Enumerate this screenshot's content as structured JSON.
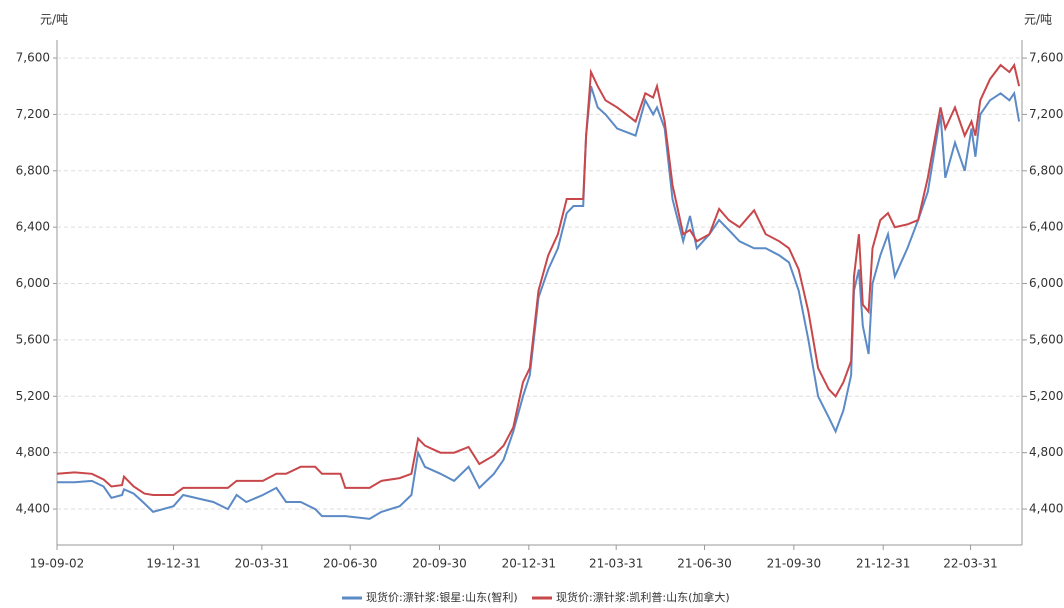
{
  "chart_data": {
    "type": "line",
    "y_label": "元/吨",
    "y2_label": "元/吨",
    "x": [
      "19-09-02",
      "19-09-20",
      "19-10-08",
      "19-10-20",
      "19-10-28",
      "19-11-08",
      "19-11-10",
      "19-11-20",
      "19-12-01",
      "19-12-10",
      "19-12-31",
      "20-01-10",
      "20-02-10",
      "20-02-25",
      "20-03-05",
      "20-03-15",
      "20-04-01",
      "20-04-15",
      "20-04-25",
      "20-05-10",
      "20-05-25",
      "20-06-01",
      "20-06-20",
      "20-06-25",
      "20-07-20",
      "20-08-01",
      "20-08-20",
      "20-09-01",
      "20-09-08",
      "20-09-15",
      "20-10-01",
      "20-10-15",
      "20-10-30",
      "20-11-10",
      "20-11-25",
      "20-12-05",
      "20-12-15",
      "20-12-25",
      "21-01-01",
      "21-01-10",
      "21-01-20",
      "21-01-30",
      "21-02-08",
      "21-02-15",
      "21-02-25",
      "21-02-28",
      "21-03-05",
      "21-03-12",
      "21-03-20",
      "21-04-01",
      "21-04-20",
      "21-04-30",
      "21-05-08",
      "21-05-12",
      "21-05-20",
      "21-05-28",
      "21-06-08",
      "21-06-15",
      "21-06-22",
      "21-07-05",
      "21-07-15",
      "21-07-25",
      "21-08-05",
      "21-08-20",
      "21-09-01",
      "21-09-15",
      "21-09-25",
      "21-10-05",
      "21-10-15",
      "21-10-25",
      "21-11-05",
      "21-11-12",
      "21-11-20",
      "21-11-28",
      "21-12-01",
      "21-12-06",
      "21-12-10",
      "21-12-16",
      "21-12-20",
      "21-12-28",
      "22-01-05",
      "22-01-12",
      "22-01-25",
      "22-02-05",
      "22-02-15",
      "22-02-28",
      "22-03-05",
      "22-03-15",
      "22-03-25",
      "22-04-01",
      "22-04-05",
      "22-04-10",
      "22-04-20",
      "22-05-01",
      "22-05-10",
      "22-05-15",
      "22-05-20"
    ],
    "series": [
      {
        "name": "现货价:漂针浆:银星:山东(智利)",
        "color": "#5b8ac6",
        "values": [
          4590,
          4590,
          4600,
          4560,
          4480,
          4500,
          4540,
          4510,
          4440,
          4380,
          4420,
          4500,
          4450,
          4400,
          4500,
          4450,
          4500,
          4550,
          4450,
          4450,
          4400,
          4350,
          4350,
          4350,
          4330,
          4380,
          4420,
          4500,
          4800,
          4700,
          4650,
          4600,
          4700,
          4550,
          4650,
          4750,
          4950,
          5200,
          5350,
          5900,
          6100,
          6250,
          6500,
          6550,
          6550,
          7050,
          7400,
          7250,
          7200,
          7100,
          7050,
          7300,
          7200,
          7250,
          7100,
          6600,
          6300,
          6480,
          6250,
          6350,
          6450,
          6380,
          6300,
          6250,
          6250,
          6200,
          6150,
          5950,
          5600,
          5200,
          5050,
          4950,
          5100,
          5350,
          5950,
          6100,
          5700,
          5500,
          6000,
          6200,
          6350,
          6050,
          6250,
          6450,
          6650,
          7200,
          6750,
          7000,
          6800,
          7100,
          6900,
          7200,
          7300,
          7350,
          7300,
          7350,
          7150
        ]
      },
      {
        "name": "现货价:漂针浆:凯利普:山东(加拿大)",
        "color": "#c8474a",
        "values": [
          4650,
          4660,
          4650,
          4610,
          4560,
          4570,
          4630,
          4560,
          4510,
          4500,
          4500,
          4550,
          4550,
          4550,
          4600,
          4600,
          4600,
          4650,
          4650,
          4700,
          4700,
          4650,
          4650,
          4550,
          4550,
          4600,
          4620,
          4650,
          4900,
          4850,
          4800,
          4800,
          4840,
          4720,
          4780,
          4850,
          4980,
          5300,
          5400,
          5950,
          6200,
          6350,
          6600,
          6600,
          6600,
          7050,
          7500,
          7400,
          7300,
          7250,
          7150,
          7350,
          7320,
          7400,
          7150,
          6700,
          6350,
          6380,
          6300,
          6350,
          6530,
          6450,
          6400,
          6520,
          6350,
          6300,
          6250,
          6100,
          5800,
          5400,
          5250,
          5200,
          5300,
          5450,
          6050,
          6350,
          5850,
          5800,
          6250,
          6450,
          6500,
          6400,
          6420,
          6450,
          6750,
          7250,
          7100,
          7250,
          7050,
          7150,
          7050,
          7300,
          7450,
          7550,
          7500,
          7550,
          7400
        ]
      }
    ],
    "xlim": [
      "19-09-02",
      "22-05-23"
    ],
    "xticks": [
      "19-09-02",
      "19-12-31",
      "20-03-31",
      "20-06-30",
      "20-09-30",
      "20-12-31",
      "21-03-31",
      "21-06-30",
      "21-09-30",
      "21-12-31",
      "22-03-31"
    ],
    "ylim": [
      4145,
      7728
    ],
    "yticks": [
      {
        "value": 4400,
        "label": "4,400"
      },
      {
        "value": 4800,
        "label": "4,800"
      },
      {
        "value": 5200,
        "label": "5,200"
      },
      {
        "value": 5600,
        "label": "5,600"
      },
      {
        "value": 6000,
        "label": "6,000"
      },
      {
        "value": 6400,
        "label": "6,400"
      },
      {
        "value": 6800,
        "label": "6,800"
      },
      {
        "value": 7200,
        "label": "7,200"
      },
      {
        "value": 7600,
        "label": "7,600"
      }
    ],
    "y2lim": [
      4145,
      7728
    ],
    "y2ticks": [
      {
        "value": 4400,
        "label": "4,400"
      },
      {
        "value": 4800,
        "label": "4,800"
      },
      {
        "value": 5200,
        "label": "5,200"
      },
      {
        "value": 5600,
        "label": "5,600"
      },
      {
        "value": 6000,
        "label": "6,000"
      },
      {
        "value": 6400,
        "label": "6,400"
      },
      {
        "value": 6800,
        "label": "6,800"
      },
      {
        "value": 7200,
        "label": "7,200"
      },
      {
        "value": 7600,
        "label": "7,600"
      }
    ],
    "grid": true,
    "legend": "bottom"
  }
}
